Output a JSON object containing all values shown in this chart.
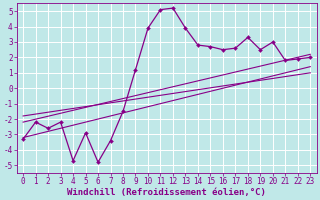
{
  "background_color": "#c0e8e8",
  "grid_color": "#ffffff",
  "line_color": "#880088",
  "xlabel": "Windchill (Refroidissement éolien,°C)",
  "xlabel_fontsize": 6.5,
  "tick_fontsize": 5.5,
  "xlim": [
    -0.5,
    23.5
  ],
  "ylim": [
    -5.5,
    5.5
  ],
  "yticks": [
    -5,
    -4,
    -3,
    -2,
    -1,
    0,
    1,
    2,
    3,
    4,
    5
  ],
  "xticks": [
    0,
    1,
    2,
    3,
    4,
    5,
    6,
    7,
    8,
    9,
    10,
    11,
    12,
    13,
    14,
    15,
    16,
    17,
    18,
    19,
    20,
    21,
    22,
    23
  ],
  "main_line_x": [
    0,
    1,
    2,
    3,
    4,
    5,
    6,
    7,
    8,
    9,
    10,
    11,
    12,
    13,
    14,
    15,
    16,
    17,
    18,
    19,
    20,
    21,
    22,
    23
  ],
  "main_line_y": [
    -3.3,
    -2.2,
    -2.6,
    -2.2,
    -4.7,
    -2.9,
    -4.8,
    -3.4,
    -1.5,
    1.2,
    3.9,
    5.1,
    5.2,
    3.9,
    2.8,
    2.7,
    2.5,
    2.6,
    3.3,
    2.5,
    3.0,
    1.8,
    1.9,
    2.0
  ],
  "reg_line1_x": [
    0,
    23
  ],
  "reg_line1_y": [
    -3.2,
    1.4
  ],
  "reg_line2_x": [
    0,
    23
  ],
  "reg_line2_y": [
    -2.2,
    2.2
  ],
  "reg_line3_x": [
    0,
    23
  ],
  "reg_line3_y": [
    -1.8,
    1.0
  ]
}
